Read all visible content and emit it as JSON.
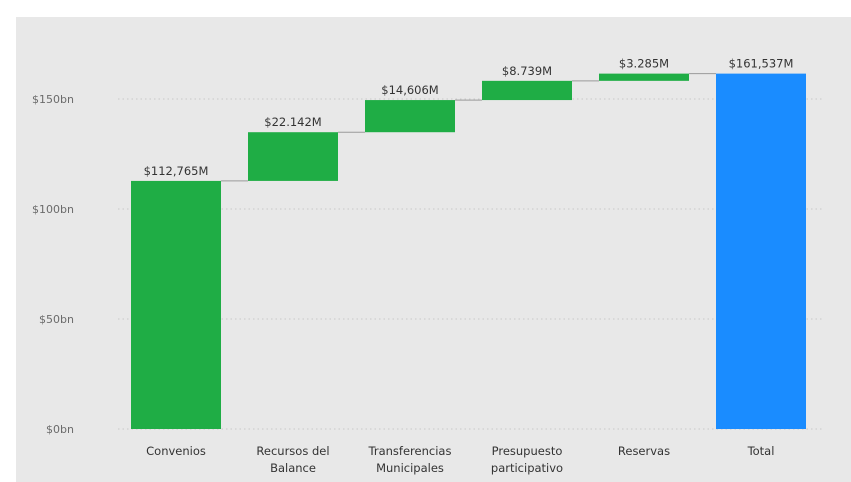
{
  "chart_data": {
    "type": "bar",
    "subtype": "waterfall",
    "categories": [
      [
        "Convenios"
      ],
      [
        "Recursos del",
        "Balance"
      ],
      [
        "Transferencias",
        "Municipales"
      ],
      [
        "Presupuesto",
        "participativo"
      ],
      [
        "Reservas"
      ],
      [
        "Total"
      ]
    ],
    "values": [
      112.765,
      22.142,
      14.606,
      8.739,
      3.285,
      161.537
    ],
    "is_total": [
      false,
      false,
      false,
      false,
      false,
      true
    ],
    "data_labels": [
      "$112,765M",
      "$22.142M",
      "$14,606M",
      "$8.739M",
      "$3.285M",
      "$161,537M"
    ],
    "y_unit": "bn",
    "yticks": [
      0,
      50,
      100,
      150
    ],
    "ytick_labels": [
      "$0bn",
      "$50bn",
      "$100bn",
      "$150bn"
    ],
    "ylim": [
      0,
      170
    ],
    "grid": "dotted horizontal",
    "colors": {
      "increase": "#1fad45",
      "total": "#1a8cff",
      "connector": "#9a9a9a",
      "grid": "#c9c9c9",
      "background": "#e8e8e8"
    }
  }
}
